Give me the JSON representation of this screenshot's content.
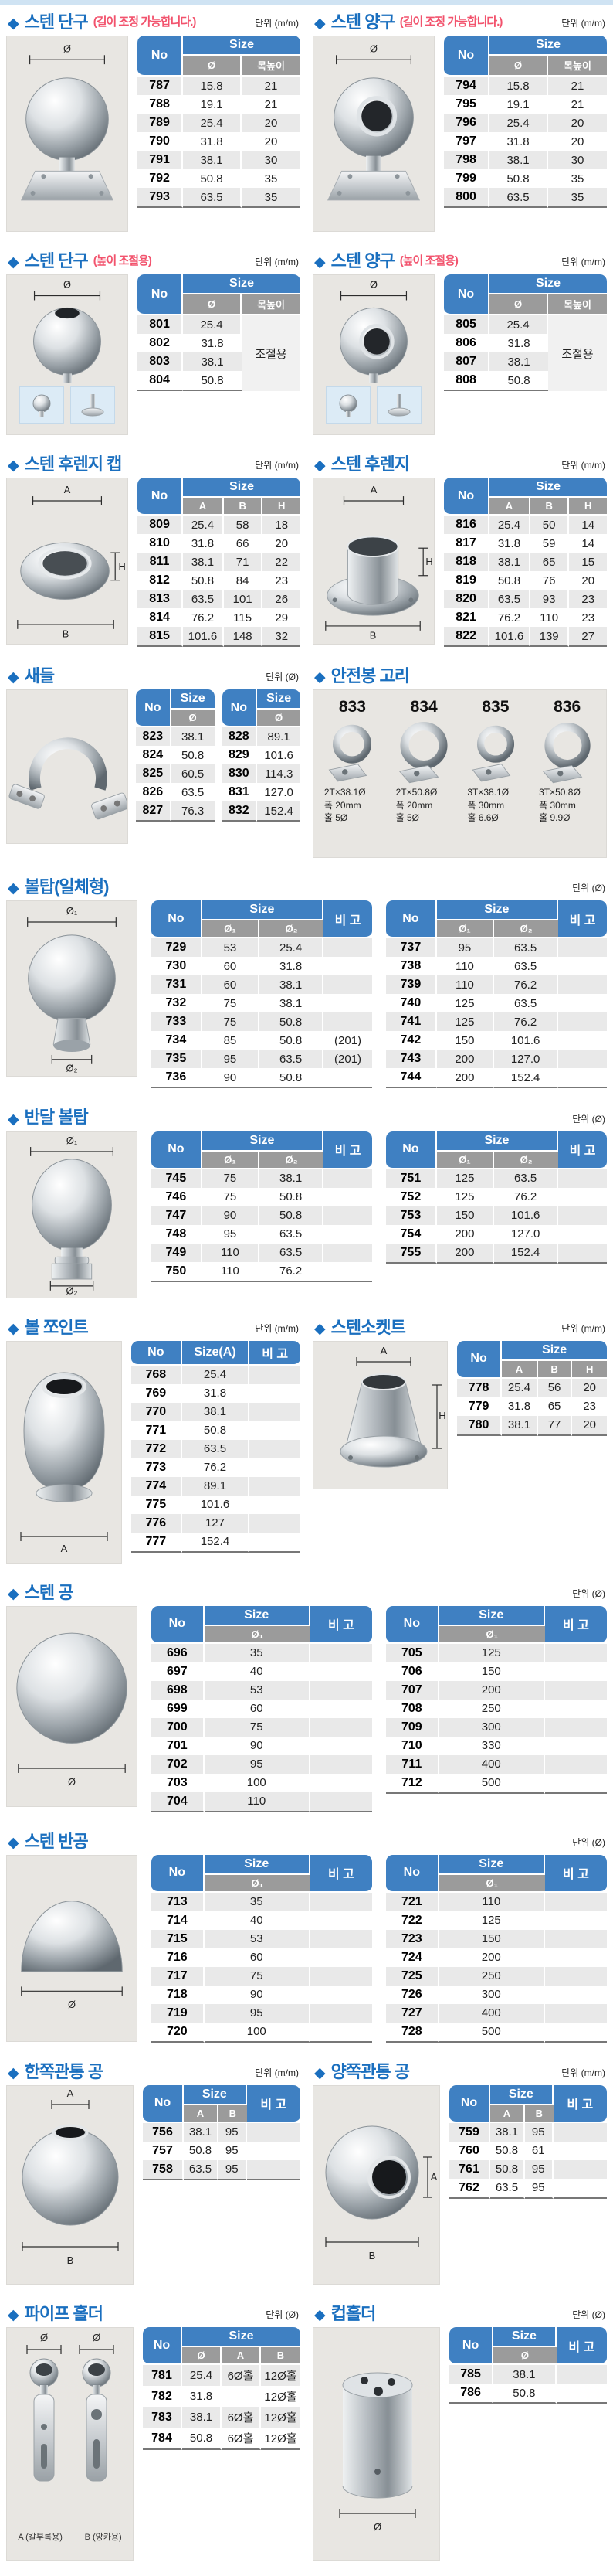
{
  "labels": {
    "no": "No",
    "size": "Size",
    "remark": "비 고"
  },
  "s": {
    "d1": {
      "title": "스텐 단구",
      "note": "(길이 조정 가능합니다.)",
      "unit": "단위 (m/m)",
      "dims": [
        "Ø"
      ],
      "cols": [
        "Ø",
        "목높이"
      ],
      "rows": [
        [
          "787",
          "15.8",
          "21"
        ],
        [
          "788",
          "19.1",
          "21"
        ],
        [
          "789",
          "25.4",
          "20"
        ],
        [
          "790",
          "31.8",
          "20"
        ],
        [
          "791",
          "38.1",
          "30"
        ],
        [
          "792",
          "50.8",
          "35"
        ],
        [
          "793",
          "63.5",
          "35"
        ]
      ]
    },
    "y1": {
      "title": "스텐 양구",
      "note": "(길이 조정 가능합니다.)",
      "unit": "단위 (m/m)",
      "dims": [
        "Ø"
      ],
      "cols": [
        "Ø",
        "목높이"
      ],
      "rows": [
        [
          "794",
          "15.8",
          "21"
        ],
        [
          "795",
          "19.1",
          "21"
        ],
        [
          "796",
          "25.4",
          "20"
        ],
        [
          "797",
          "31.8",
          "20"
        ],
        [
          "798",
          "38.1",
          "30"
        ],
        [
          "799",
          "50.8",
          "35"
        ],
        [
          "800",
          "63.5",
          "35"
        ]
      ]
    },
    "d2": {
      "title": "스텐 단구",
      "note": "(높이 조절용)",
      "unit": "단위 (m/m)",
      "dims": [
        "Ø"
      ],
      "cols": [
        "Ø",
        "목높이"
      ],
      "rows": [
        [
          "801",
          "25.4",
          {
            "t": "조절용",
            "rs": 4
          }
        ],
        [
          "802",
          "31.8"
        ],
        [
          "803",
          "38.1"
        ],
        [
          "804",
          "50.8"
        ]
      ]
    },
    "y2": {
      "title": "스텐 양구",
      "note": "(높이 조절용)",
      "unit": "단위 (m/m)",
      "dims": [
        "Ø"
      ],
      "cols": [
        "Ø",
        "목높이"
      ],
      "rows": [
        [
          "805",
          "25.4",
          {
            "t": "조절용",
            "rs": 4
          }
        ],
        [
          "806",
          "31.8"
        ],
        [
          "807",
          "38.1"
        ],
        [
          "808",
          "50.8"
        ]
      ]
    },
    "fcap": {
      "title": "스텐 후렌지 캡",
      "unit": "단위 (m/m)",
      "dims": [
        "A",
        "H",
        "B"
      ],
      "cols": [
        "A",
        "B",
        "H"
      ],
      "rows": [
        [
          "809",
          "25.4",
          "58",
          "18"
        ],
        [
          "810",
          "31.8",
          "66",
          "20"
        ],
        [
          "811",
          "38.1",
          "71",
          "22"
        ],
        [
          "812",
          "50.8",
          "84",
          "23"
        ],
        [
          "813",
          "63.5",
          "101",
          "26"
        ],
        [
          "814",
          "76.2",
          "115",
          "29"
        ],
        [
          "815",
          "101.6",
          "148",
          "32"
        ]
      ]
    },
    "flange": {
      "title": "스텐 후렌지",
      "unit": "단위 (m/m)",
      "dims": [
        "A",
        "H",
        "B"
      ],
      "cols": [
        "A",
        "B",
        "H"
      ],
      "rows": [
        [
          "816",
          "25.4",
          "50",
          "14"
        ],
        [
          "817",
          "31.8",
          "59",
          "14"
        ],
        [
          "818",
          "38.1",
          "65",
          "15"
        ],
        [
          "819",
          "50.8",
          "76",
          "20"
        ],
        [
          "820",
          "63.5",
          "93",
          "23"
        ],
        [
          "821",
          "76.2",
          "110",
          "23"
        ],
        [
          "822",
          "101.6",
          "139",
          "27"
        ]
      ]
    },
    "saddle": {
      "title": "새들",
      "unit": "단위 (Ø)",
      "cols": [
        "Ø"
      ],
      "rows_a": [
        [
          "823",
          "38.1"
        ],
        [
          "824",
          "50.8"
        ],
        [
          "825",
          "60.5"
        ],
        [
          "826",
          "63.5"
        ],
        [
          "827",
          "76.3"
        ]
      ],
      "rows_b": [
        [
          "828",
          "89.1"
        ],
        [
          "829",
          "101.6"
        ],
        [
          "830",
          "114.3"
        ],
        [
          "831",
          "127.0"
        ],
        [
          "832",
          "152.4"
        ]
      ]
    },
    "hook": {
      "title": "안전봉 고리",
      "products": [
        {
          "no": "833",
          "l1": "2T×38.1Ø",
          "l2": "폭 20mm",
          "l3": "홀 5Ø"
        },
        {
          "no": "834",
          "l1": "2T×50.8Ø",
          "l2": "폭 20mm",
          "l3": "홀 5Ø"
        },
        {
          "no": "835",
          "l1": "3T×38.1Ø",
          "l2": "폭 30mm",
          "l3": "홀 6.6Ø"
        },
        {
          "no": "836",
          "l1": "3T×50.8Ø",
          "l2": "폭 30mm",
          "l3": "홀 9.9Ø"
        }
      ]
    },
    "balltop": {
      "title": "볼탑(일체형)",
      "unit": "단위 (Ø)",
      "dims": [
        "Ø₁",
        "Ø₂"
      ],
      "cols": [
        "Ø₁",
        "Ø₂"
      ],
      "rows_a": [
        [
          "729",
          "53",
          "25.4",
          ""
        ],
        [
          "730",
          "60",
          "31.8",
          ""
        ],
        [
          "731",
          "60",
          "38.1",
          ""
        ],
        [
          "732",
          "75",
          "38.1",
          ""
        ],
        [
          "733",
          "75",
          "50.8",
          ""
        ],
        [
          "734",
          "85",
          "50.8",
          "(201)"
        ],
        [
          "735",
          "95",
          "63.5",
          "(201)"
        ],
        [
          "736",
          "90",
          "50.8",
          ""
        ]
      ],
      "rows_b": [
        [
          "737",
          "95",
          "63.5",
          ""
        ],
        [
          "738",
          "110",
          "63.5",
          ""
        ],
        [
          "739",
          "110",
          "76.2",
          ""
        ],
        [
          "740",
          "125",
          "63.5",
          ""
        ],
        [
          "741",
          "125",
          "76.2",
          ""
        ],
        [
          "742",
          "150",
          "101.6",
          ""
        ],
        [
          "743",
          "200",
          "127.0",
          ""
        ],
        [
          "744",
          "200",
          "152.4",
          ""
        ]
      ]
    },
    "halfball": {
      "title": "반달 볼탑",
      "unit": "단위 (Ø)",
      "dims": [
        "Ø₁",
        "Ø₂"
      ],
      "cols": [
        "Ø₁",
        "Ø₂"
      ],
      "rows_a": [
        [
          "745",
          "75",
          "38.1",
          ""
        ],
        [
          "746",
          "75",
          "50.8",
          ""
        ],
        [
          "747",
          "90",
          "50.8",
          ""
        ],
        [
          "748",
          "95",
          "63.5",
          ""
        ],
        [
          "749",
          "110",
          "63.5",
          ""
        ],
        [
          "750",
          "110",
          "76.2",
          ""
        ]
      ],
      "rows_b": [
        [
          "751",
          "125",
          "63.5",
          ""
        ],
        [
          "752",
          "125",
          "76.2",
          ""
        ],
        [
          "753",
          "150",
          "101.6",
          ""
        ],
        [
          "754",
          "200",
          "127.0",
          ""
        ],
        [
          "755",
          "200",
          "152.4",
          ""
        ]
      ]
    },
    "balljoint": {
      "title": "볼 쪼인트",
      "unit": "단위 (m/m)",
      "dims": [
        "A"
      ],
      "size_col": "Size(A)",
      "rows": [
        [
          "768",
          "25.4",
          ""
        ],
        [
          "769",
          "31.8",
          ""
        ],
        [
          "770",
          "38.1",
          ""
        ],
        [
          "771",
          "50.8",
          ""
        ],
        [
          "772",
          "63.5",
          ""
        ],
        [
          "773",
          "76.2",
          ""
        ],
        [
          "774",
          "89.1",
          ""
        ],
        [
          "775",
          "101.6",
          ""
        ],
        [
          "776",
          "127",
          ""
        ],
        [
          "777",
          "152.4",
          ""
        ]
      ]
    },
    "socket": {
      "title": "스텐소켓트",
      "unit": "단위 (m/m)",
      "dims": [
        "A",
        "H"
      ],
      "cols": [
        "A",
        "B",
        "H"
      ],
      "rows": [
        [
          "778",
          "25.4",
          "56",
          "20"
        ],
        [
          "779",
          "31.8",
          "65",
          "23"
        ],
        [
          "780",
          "38.1",
          "77",
          "20"
        ]
      ]
    },
    "ball": {
      "title": "스텐 공",
      "unit": "단위 (Ø)",
      "dims": [
        "Ø"
      ],
      "cols": [
        "Ø₁"
      ],
      "rows_a": [
        [
          "696",
          "35",
          ""
        ],
        [
          "697",
          "40",
          ""
        ],
        [
          "698",
          "53",
          ""
        ],
        [
          "699",
          "60",
          ""
        ],
        [
          "700",
          "75",
          ""
        ],
        [
          "701",
          "90",
          ""
        ],
        [
          "702",
          "95",
          ""
        ],
        [
          "703",
          "100",
          ""
        ],
        [
          "704",
          "110",
          ""
        ]
      ],
      "rows_b": [
        [
          "705",
          "125",
          ""
        ],
        [
          "706",
          "150",
          ""
        ],
        [
          "707",
          "200",
          ""
        ],
        [
          "708",
          "250",
          ""
        ],
        [
          "709",
          "300",
          ""
        ],
        [
          "710",
          "330",
          ""
        ],
        [
          "711",
          "400",
          ""
        ],
        [
          "712",
          "500",
          ""
        ]
      ]
    },
    "halfdome": {
      "title": "스텐 반공",
      "unit": "단위 (Ø)",
      "dims": [
        "Ø"
      ],
      "cols": [
        "Ø₁"
      ],
      "rows_a": [
        [
          "713",
          "35",
          ""
        ],
        [
          "714",
          "40",
          ""
        ],
        [
          "715",
          "53",
          ""
        ],
        [
          "716",
          "60",
          ""
        ],
        [
          "717",
          "75",
          ""
        ],
        [
          "718",
          "90",
          ""
        ],
        [
          "719",
          "95",
          ""
        ],
        [
          "720",
          "100",
          ""
        ]
      ],
      "rows_b": [
        [
          "721",
          "110",
          ""
        ],
        [
          "722",
          "125",
          ""
        ],
        [
          "723",
          "150",
          ""
        ],
        [
          "724",
          "200",
          ""
        ],
        [
          "725",
          "250",
          ""
        ],
        [
          "726",
          "300",
          ""
        ],
        [
          "727",
          "400",
          ""
        ],
        [
          "728",
          "500",
          ""
        ]
      ]
    },
    "onehole": {
      "title": "한쪽관통 공",
      "unit": "단위 (m/m)",
      "dims": [
        "A",
        "B"
      ],
      "cols": [
        "A",
        "B"
      ],
      "rows": [
        [
          "756",
          "38.1",
          "95",
          ""
        ],
        [
          "757",
          "50.8",
          "95",
          ""
        ],
        [
          "758",
          "63.5",
          "95",
          ""
        ]
      ]
    },
    "twohole": {
      "title": "양쪽관통 공",
      "unit": "단위 (m/m)",
      "dims": [
        "A",
        "B"
      ],
      "cols": [
        "A",
        "B"
      ],
      "rows": [
        [
          "759",
          "38.1",
          "95",
          ""
        ],
        [
          "760",
          "50.8",
          "61",
          ""
        ],
        [
          "761",
          "50.8",
          "95",
          ""
        ],
        [
          "762",
          "63.5",
          "95",
          ""
        ]
      ]
    },
    "ph": {
      "title": "파이프 홀더",
      "unit": "단위 (Ø)",
      "dims": [
        "Ø",
        "Ø"
      ],
      "cols": [
        "Ø",
        "A",
        "B"
      ],
      "rows": [
        [
          "781",
          "25.4",
          "6Ø홀",
          "12Ø홀"
        ],
        [
          "782",
          "31.8",
          "",
          "12Ø홀"
        ],
        [
          "783",
          "38.1",
          "6Ø홀",
          "12Ø홀"
        ],
        [
          "784",
          "50.8",
          "6Ø홀",
          "12Ø홀"
        ]
      ],
      "img_labels": [
        "A (칼부록용)",
        "B (앙카용)"
      ]
    },
    "cup": {
      "title": "컵홀더",
      "unit": "단위 (Ø)",
      "dims": [
        "Ø"
      ],
      "cols": [
        "Ø"
      ],
      "rows": [
        [
          "785",
          "38.1",
          ""
        ],
        [
          "786",
          "50.8",
          ""
        ]
      ]
    }
  }
}
